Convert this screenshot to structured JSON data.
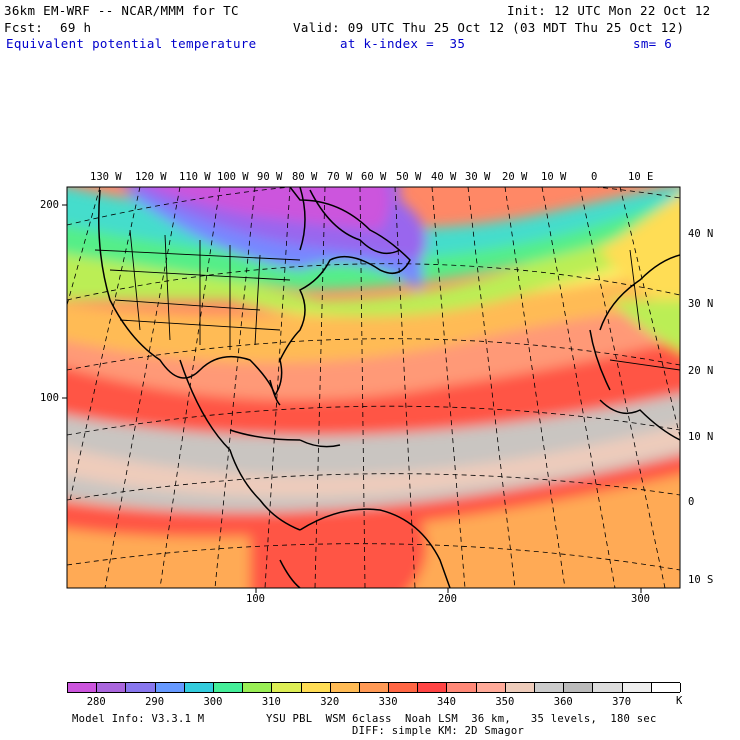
{
  "header": {
    "model_line": "36km EM-WRF -- NCAR/MMM for TC",
    "init_line": "Init: 12 UTC Mon 22 Oct 12",
    "fcst_label": "Fcst:",
    "fcst_value": "69 h",
    "valid_line": "Valid: 09 UTC Thu 25 Oct 12 (03 MDT Thu 25 Oct 12)",
    "field_name": "Equivalent potential temperature",
    "level_text": "at k-index =  35",
    "smooth_text": "sm= 6"
  },
  "map": {
    "top_lon_labels": [
      "130 W",
      "120 W",
      "110 W",
      "100 W",
      "90 W",
      "80 W",
      "70 W",
      "60 W",
      "50 W",
      "40 W",
      "30 W",
      "20 W",
      "10 W",
      "0",
      "10 E"
    ],
    "right_lat_labels": [
      "40 N",
      "30 N",
      "20 N",
      "10 N",
      "0",
      "10 S"
    ],
    "left_grid_labels": [
      "200",
      "100"
    ],
    "bottom_grid_labels": [
      "100",
      "200",
      "300"
    ],
    "colors": {
      "purple": "#cc55dd",
      "violet": "#9966ee",
      "blue": "#7788ff",
      "cyan": "#44ddcc",
      "green": "#55ee88",
      "lime": "#bbee55",
      "yellow": "#ffee66",
      "orange": "#ffbb55",
      "red": "#ff5544",
      "salmon": "#ff9977",
      "tan": "#eeccbb",
      "gray": "#c8c4c0"
    }
  },
  "colorbar": {
    "labels": [
      "280",
      "290",
      "300",
      "310",
      "320",
      "330",
      "340",
      "350",
      "360",
      "370"
    ],
    "unit": "K",
    "colors": [
      "#cc55dd",
      "#aa66dd",
      "#8877ee",
      "#6699ff",
      "#33ccdd",
      "#44ee99",
      "#99ee55",
      "#ddee55",
      "#ffdd55",
      "#ffbb55",
      "#ff9955",
      "#ff6644",
      "#ff4444",
      "#ff8877",
      "#ffaa99",
      "#eeccbb",
      "#cccccc",
      "#bbbbbb",
      "#dddddd",
      "#eeeeee",
      "#ffffff"
    ]
  },
  "footer": {
    "model_info": "Model Info: V3.3.1 M",
    "physics": "YSU PBL  WSM 6class  Noah LSM  36 km,   35 levels,  180 sec",
    "diffusion": "DIFF: simple KM: 2D Smagor"
  }
}
